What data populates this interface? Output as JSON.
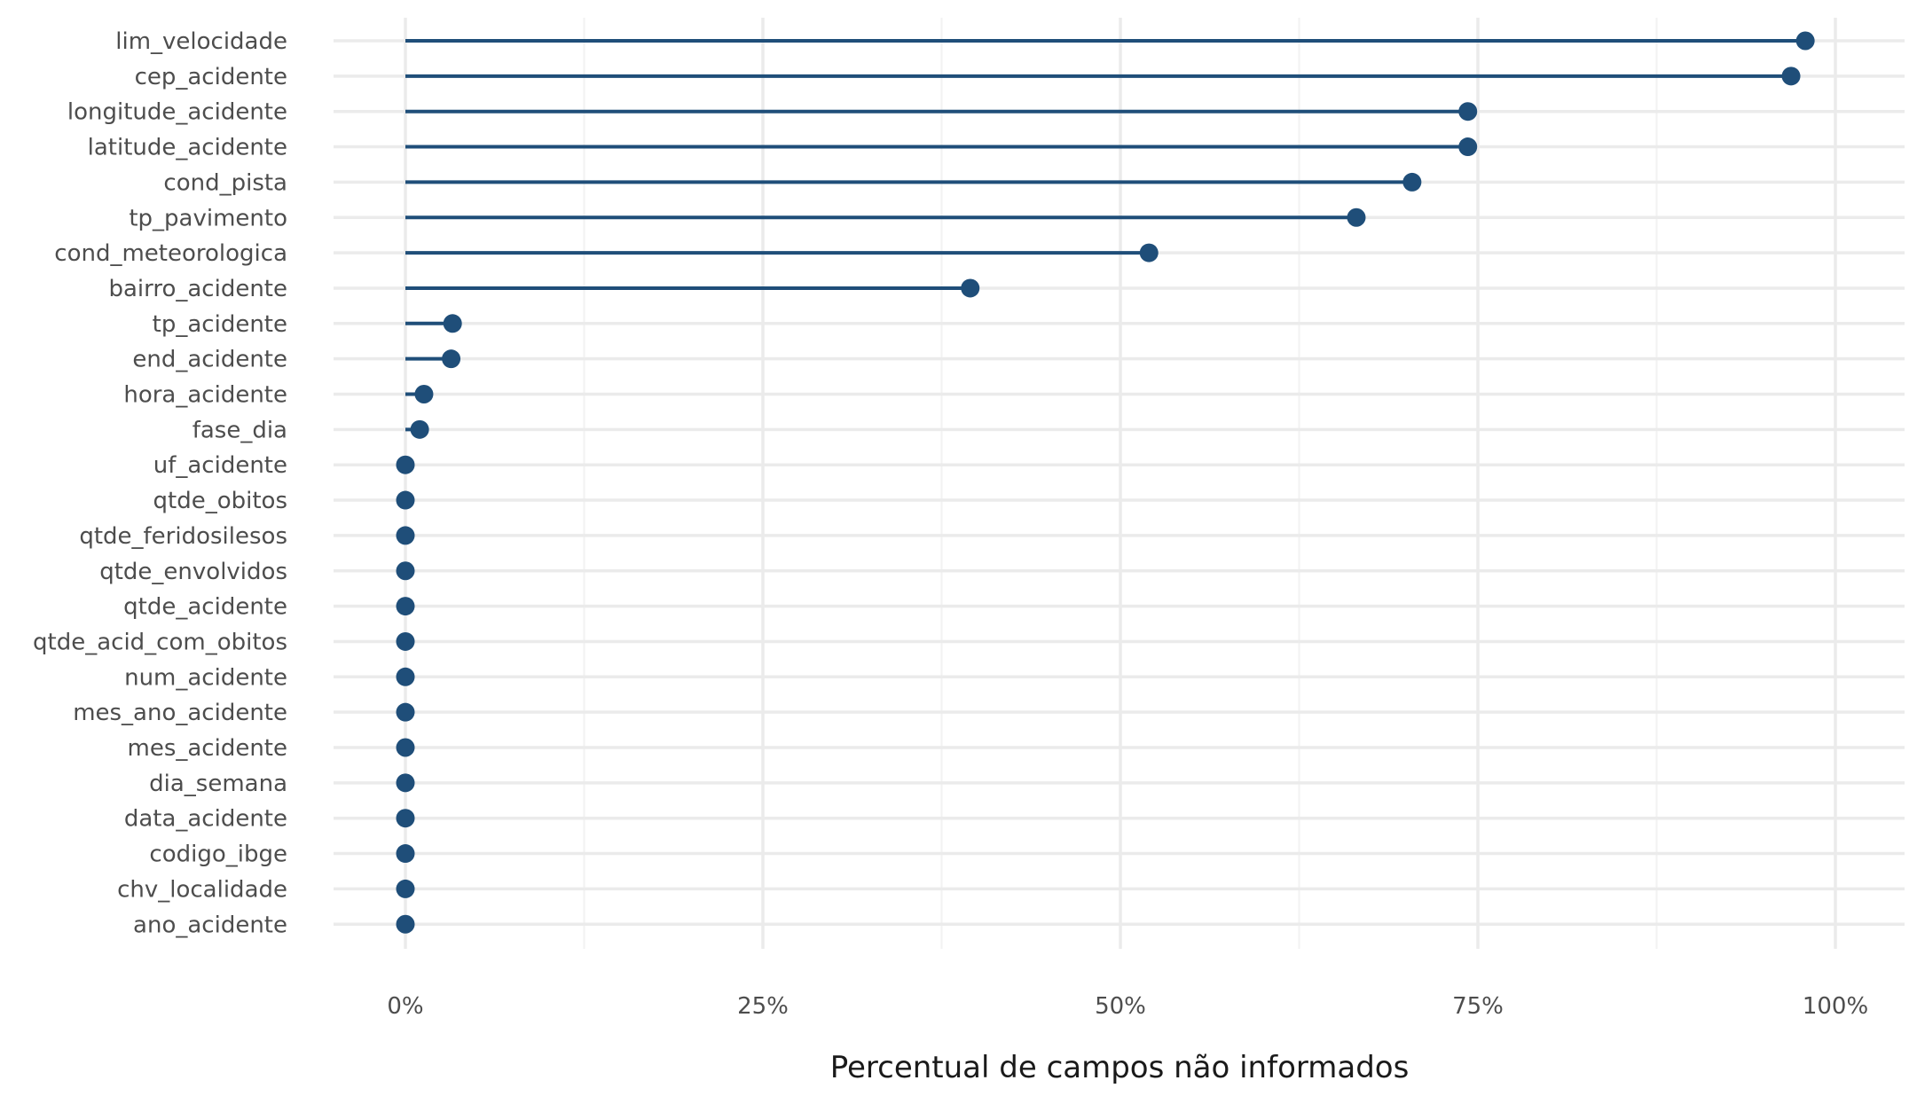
{
  "chart_data": {
    "type": "lollipop",
    "title": "",
    "xlabel": "Percentual de campos não informados",
    "ylabel": "",
    "xlim": [
      -0.05,
      1.05
    ],
    "x_ticks": [
      0,
      0.25,
      0.5,
      0.75,
      1.0
    ],
    "x_tick_labels": [
      "0%",
      "25%",
      "50%",
      "75%",
      "100%"
    ],
    "grid": true,
    "legend": "none",
    "colors": {
      "mark": "#1f4e79",
      "grid": "#ebebeb",
      "text": "#4d4d4d"
    },
    "categories": [
      "lim_velocidade",
      "cep_acidente",
      "longitude_acidente",
      "latitude_acidente",
      "cond_pista",
      "tp_pavimento",
      "cond_meteorologica",
      "bairro_acidente",
      "tp_acidente",
      "end_acidente",
      "hora_acidente",
      "fase_dia",
      "uf_acidente",
      "qtde_obitos",
      "qtde_feridosilesos",
      "qtde_envolvidos",
      "qtde_acidente",
      "qtde_acid_com_obitos",
      "num_acidente",
      "mes_ano_acidente",
      "mes_acidente",
      "dia_semana",
      "data_acidente",
      "codigo_ibge",
      "chv_localidade",
      "ano_acidente"
    ],
    "values": [
      0.979,
      0.969,
      0.743,
      0.743,
      0.704,
      0.665,
      0.52,
      0.395,
      0.033,
      0.032,
      0.013,
      0.01,
      0,
      0,
      0,
      0,
      0,
      0,
      0,
      0,
      0,
      0,
      0,
      0,
      0,
      0
    ]
  }
}
